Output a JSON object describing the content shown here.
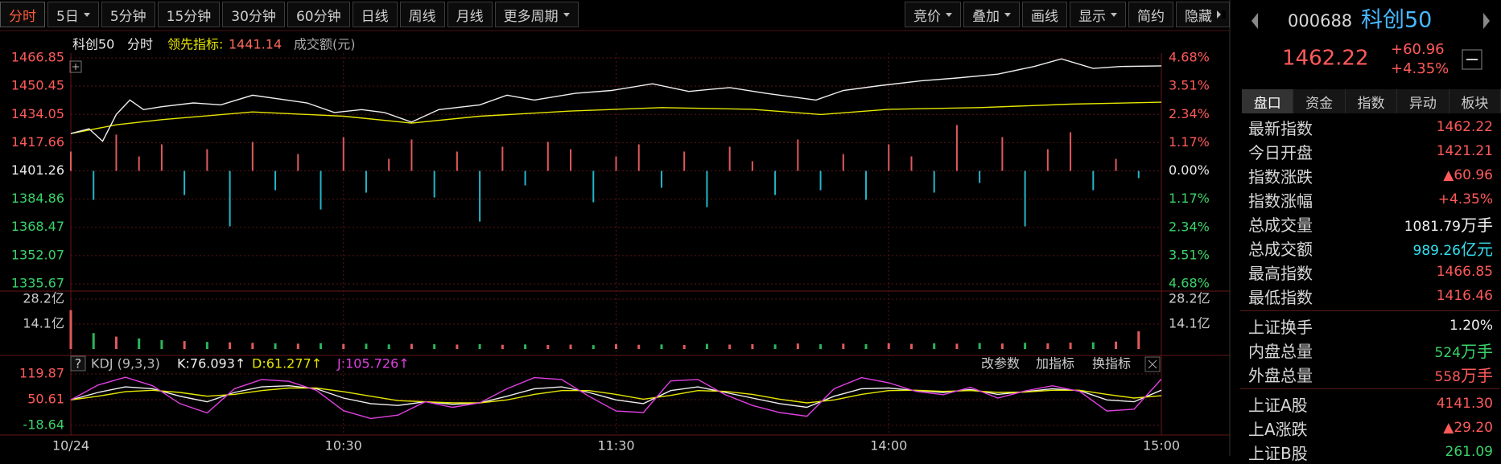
{
  "toolbar": {
    "left": [
      {
        "label": "分时",
        "active": true
      },
      {
        "label": "5日",
        "dropdown": true
      },
      {
        "label": "5分钟"
      },
      {
        "label": "15分钟"
      },
      {
        "label": "30分钟"
      },
      {
        "label": "60分钟"
      },
      {
        "label": "日线"
      },
      {
        "label": "周线"
      },
      {
        "label": "月线"
      },
      {
        "label": "更多周期",
        "dropdown": true
      }
    ],
    "right": [
      {
        "label": "竞价",
        "dropdown": true
      },
      {
        "label": "叠加",
        "dropdown": true
      },
      {
        "label": "画线"
      },
      {
        "label": "显示",
        "dropdown": true
      },
      {
        "label": "简约"
      },
      {
        "label": "隐藏",
        "arrows": true
      }
    ]
  },
  "chart": {
    "header": {
      "name": "科创50",
      "mode": "分时",
      "indicator_label": "领先指标:",
      "indicator_value": "1441.14",
      "volume_label": "成交额(元)"
    },
    "xlim": [
      0,
      240
    ],
    "xticks": [
      {
        "value": 0,
        "label": "10/24"
      },
      {
        "value": 60,
        "label": "10:30"
      },
      {
        "value": 120,
        "label": "11:30"
      },
      {
        "value": 180,
        "label": "14:00"
      },
      {
        "value": 240,
        "label": "15:00"
      }
    ],
    "price_panel": {
      "ylim": [
        1335.67,
        1466.85
      ],
      "yticks": [
        1466.85,
        1450.45,
        1434.05,
        1417.66,
        1401.26,
        1384.86,
        1368.47,
        1352.07,
        1335.67
      ],
      "y2lim": [
        -4.68,
        4.68
      ],
      "y2ticks": [
        {
          "value": 4.68,
          "label": "4.68%"
        },
        {
          "value": 3.51,
          "label": "3.51%"
        },
        {
          "value": 2.34,
          "label": "2.34%"
        },
        {
          "value": 1.17,
          "label": "1.17%"
        },
        {
          "value": 0,
          "label": "0.00%"
        },
        {
          "value": -1.17,
          "label": "1.17%"
        },
        {
          "value": -2.34,
          "label": "2.34%"
        },
        {
          "value": -3.51,
          "label": "3.51%"
        },
        {
          "value": -4.68,
          "label": "4.68%"
        }
      ],
      "price": {
        "color": "#f0f0f0",
        "x": [
          0,
          4,
          7,
          10,
          13,
          16,
          20,
          27,
          33,
          40,
          46,
          52,
          58,
          64,
          69,
          75,
          81,
          90,
          96,
          102,
          111,
          119,
          128,
          136,
          145,
          153,
          164,
          170,
          178,
          187,
          195,
          204,
          212,
          218,
          225,
          231,
          240
        ],
        "values": [
          1422.93,
          1425.71,
          1418.48,
          1434.05,
          1442.39,
          1436.83,
          1438.5,
          1440.72,
          1439.61,
          1445.17,
          1442.95,
          1440.72,
          1435.16,
          1436.83,
          1435.16,
          1429.6,
          1436.83,
          1439.61,
          1445.17,
          1442.39,
          1446.28,
          1447.95,
          1451.84,
          1447.39,
          1449.62,
          1446.28,
          1442.39,
          1447.95,
          1450.73,
          1453.51,
          1455.18,
          1457.4,
          1461.85,
          1466.29,
          1460.73,
          1461.85,
          1462.22
        ]
      },
      "average": {
        "color": "#e6e600",
        "x": [
          0,
          10,
          20,
          40,
          60,
          75,
          90,
          110,
          130,
          150,
          165,
          180,
          200,
          220,
          240
        ],
        "values": [
          1422.9,
          1428,
          1431,
          1435.5,
          1433,
          1429,
          1433,
          1436,
          1438,
          1437,
          1434,
          1437,
          1438,
          1440,
          1441.14
        ]
      },
      "indicator_bars": {
        "up_color": "#e05a5a",
        "down_color": "#22b6c8",
        "x": [
          0,
          5,
          10,
          15,
          20,
          25,
          30,
          35,
          40,
          45,
          50,
          55,
          60,
          65,
          70,
          75,
          80,
          85,
          90,
          95,
          100,
          105,
          110,
          115,
          120,
          125,
          130,
          135,
          140,
          145,
          150,
          155,
          160,
          165,
          170,
          175,
          180,
          185,
          190,
          195,
          200,
          205,
          210,
          215,
          220,
          225,
          230,
          235
        ],
        "values": [
          0.8,
          -1.2,
          1.5,
          0.6,
          1.1,
          -1.0,
          0.9,
          -2.3,
          1.2,
          -0.8,
          0.7,
          -1.6,
          1.4,
          -0.9,
          0.5,
          1.3,
          -1.1,
          0.8,
          -2.1,
          1.0,
          -0.6,
          1.2,
          0.9,
          -1.3,
          0.6,
          1.1,
          -0.7,
          0.8,
          -1.5,
          1.0,
          0.4,
          -1.0,
          1.3,
          -0.8,
          0.7,
          -1.2,
          1.1,
          0.6,
          -0.9,
          1.9,
          -0.5,
          1.4,
          -2.3,
          0.9,
          1.6,
          -0.8,
          0.5,
          -0.3
        ]
      }
    },
    "volume_panel": {
      "ylim": [
        0,
        28.2
      ],
      "yticks": [
        {
          "value": 28.2,
          "label": "28.2亿"
        },
        {
          "value": 14.1,
          "label": "14.1亿"
        }
      ],
      "x": [
        0,
        5,
        10,
        15,
        20,
        25,
        30,
        35,
        40,
        45,
        50,
        55,
        60,
        65,
        70,
        75,
        80,
        85,
        90,
        95,
        100,
        105,
        110,
        115,
        120,
        125,
        130,
        135,
        140,
        145,
        150,
        155,
        160,
        165,
        170,
        175,
        180,
        185,
        190,
        195,
        200,
        205,
        210,
        215,
        220,
        225,
        230,
        235
      ],
      "values": [
        22,
        9,
        7,
        6,
        5,
        4.5,
        4,
        3.8,
        3.5,
        3.2,
        3,
        3.3,
        2.8,
        3,
        2.6,
        2.9,
        2.7,
        2.5,
        2.8,
        2.4,
        2.6,
        2.3,
        2.5,
        2.2,
        2.7,
        2.4,
        2.6,
        2.3,
        2.9,
        2.5,
        2.8,
        2.6,
        3.1,
        2.7,
        3,
        2.8,
        3.3,
        2.9,
        3.2,
        3,
        3.4,
        3.1,
        3.5,
        3.2,
        3.6,
        3.8,
        4.2,
        10
      ],
      "colors": [
        "#e05a5a",
        "#2cb45a",
        "#e05a5a",
        "#2cb45a",
        "#2cb45a",
        "#e05a5a",
        "#2cb45a",
        "#e05a5a",
        "#e05a5a",
        "#2cb45a",
        "#e05a5a",
        "#2cb45a",
        "#e05a5a",
        "#2cb45a",
        "#2cb45a",
        "#e05a5a",
        "#2cb45a",
        "#e05a5a",
        "#2cb45a",
        "#e05a5a",
        "#2cb45a",
        "#e05a5a",
        "#e05a5a",
        "#2cb45a",
        "#e05a5a",
        "#e05a5a",
        "#2cb45a",
        "#e05a5a",
        "#2cb45a",
        "#e05a5a",
        "#e05a5a",
        "#2cb45a",
        "#e05a5a",
        "#2cb45a",
        "#e05a5a",
        "#2cb45a",
        "#e05a5a",
        "#e05a5a",
        "#2cb45a",
        "#e05a5a",
        "#2cb45a",
        "#e05a5a",
        "#2cb45a",
        "#e05a5a",
        "#e05a5a",
        "#2cb45a",
        "#e05a5a",
        "#e05a5a"
      ]
    },
    "kdj_panel": {
      "help": "?",
      "title": "KDJ (9,3,3)",
      "k_label": "K:76.093↑",
      "d_label": "D:61.277↑",
      "j_label": "J:105.726↑",
      "actions": [
        "改参数",
        "加指标",
        "换指标"
      ],
      "ylim": [
        -18.64,
        119.87
      ],
      "yticks": [
        119.87,
        50.61,
        -18.64
      ],
      "x": [
        0,
        6,
        12,
        18,
        24,
        30,
        36,
        42,
        48,
        54,
        60,
        66,
        72,
        78,
        84,
        90,
        96,
        102,
        108,
        114,
        120,
        126,
        132,
        138,
        144,
        150,
        156,
        162,
        168,
        174,
        180,
        186,
        192,
        198,
        204,
        210,
        216,
        222,
        228,
        234,
        240
      ],
      "series": [
        {
          "color": "#f0f0f0",
          "values": [
            50,
            70,
            85,
            80,
            60,
            45,
            70,
            85,
            88,
            80,
            55,
            40,
            35,
            45,
            38,
            42,
            60,
            80,
            85,
            70,
            50,
            40,
            75,
            85,
            70,
            55,
            40,
            30,
            60,
            80,
            82,
            75,
            70,
            78,
            65,
            72,
            80,
            75,
            50,
            45,
            76.093
          ]
        },
        {
          "color": "#e6e600",
          "values": [
            50,
            60,
            72,
            76,
            70,
            60,
            65,
            75,
            82,
            82,
            72,
            60,
            48,
            45,
            42,
            42,
            50,
            65,
            75,
            75,
            65,
            52,
            62,
            75,
            73,
            65,
            52,
            42,
            50,
            65,
            75,
            76,
            73,
            75,
            70,
            71,
            76,
            76,
            65,
            55,
            61.277
          ]
        },
        {
          "color": "#e040e0",
          "values": [
            50,
            90,
            111,
            88,
            40,
            15,
            80,
            105,
            100,
            76,
            21,
            0,
            9,
            45,
            30,
            42,
            80,
            110,
            105,
            60,
            20,
            16,
            101,
            105,
            64,
            35,
            16,
            6,
            80,
            110,
            96,
            73,
            64,
            84,
            55,
            74,
            88,
            73,
            20,
            25,
            105.726
          ]
        }
      ]
    }
  },
  "sidebar": {
    "code": "000688",
    "name": "科创50",
    "price": "1462.22",
    "change": "+60.96",
    "change_pct": "+4.35%",
    "tabs": [
      "盘口",
      "资金",
      "指数",
      "异动",
      "板块"
    ],
    "groups": [
      [
        {
          "label": "最新指数",
          "value": "1462.22",
          "color": "#ff5a5a"
        },
        {
          "label": "今日开盘",
          "value": "1421.21",
          "color": "#ff5a5a"
        },
        {
          "label": "指数涨跌",
          "value": "▲60.96",
          "color": "#ff5a5a"
        },
        {
          "label": "指数涨幅",
          "value": "+4.35%",
          "color": "#ff5a5a"
        },
        {
          "label": "总成交量",
          "value": "1081.79",
          "unit": "万手",
          "color": "#f0f0f0"
        },
        {
          "label": "总成交额",
          "value": "989.26",
          "unit": "亿元",
          "color": "#33e0f0"
        },
        {
          "label": "最高指数",
          "value": "1466.85",
          "color": "#ff5a5a"
        },
        {
          "label": "最低指数",
          "value": "1416.46",
          "color": "#ff5a5a"
        }
      ],
      [
        {
          "label": "上证换手",
          "value": "1.20%",
          "color": "#f0f0f0"
        },
        {
          "label": "内盘总量",
          "value": "524",
          "unit": "万手",
          "color": "#3ad36a"
        },
        {
          "label": "外盘总量",
          "value": "558",
          "unit": "万手",
          "color": "#ff5a5a"
        }
      ],
      [
        {
          "label": "上证A股",
          "value": "4141.30",
          "color": "#ff5a5a"
        },
        {
          "label": "上A涨跌",
          "value": "▲29.20",
          "color": "#ff5a5a"
        },
        {
          "label": "上证B股",
          "value": "261.09",
          "color": "#3ad36a"
        }
      ]
    ]
  }
}
